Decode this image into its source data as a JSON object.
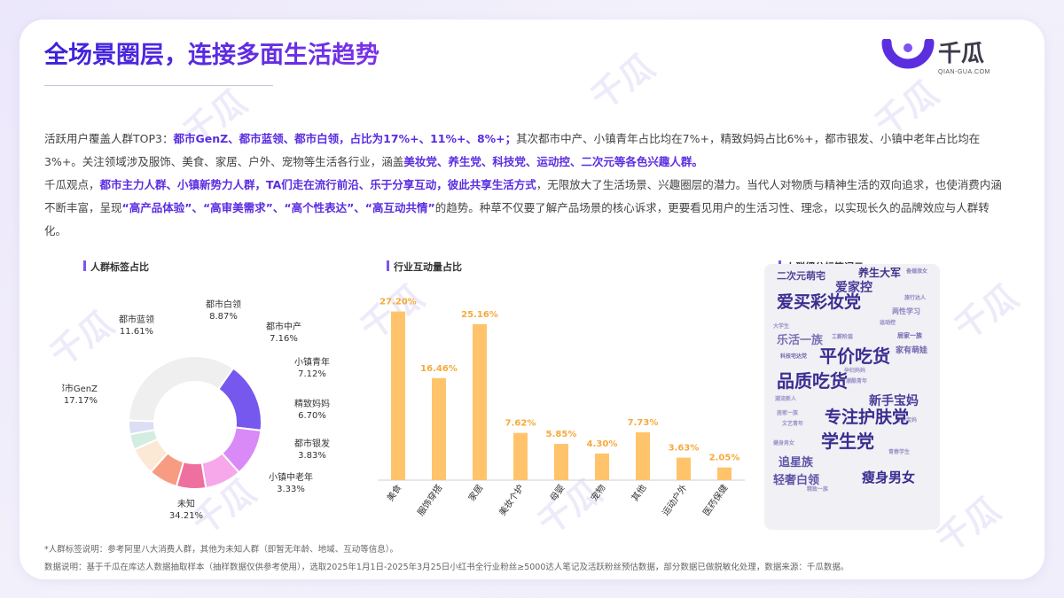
{
  "title": "全场景圈层，连接多面生活趋势",
  "logo": {
    "name": "千瓜",
    "sub": "QIAN-GUA.COM"
  },
  "watermark_text": "千瓜",
  "paragraph1": {
    "p1": "活跃用户覆盖人群TOP3：",
    "h1": "都市GenZ、都市蓝领、都市白领，占比为17%+、11%+、8%+；",
    "p2": "其次都市中产、小镇青年占比均在7%+，精致妈妈占比6%+，都市银发、小镇中老年占比均在3%+。关注领域涉及服饰、美食、家居、户外、宠物等生活各行业，涵盖",
    "h2": "美妆党、养生党、科技党、运动控、二次元等各色兴趣人群。"
  },
  "paragraph2": {
    "p1": "千瓜观点，",
    "h1": "都市主力人群、小镇新势力人群，TA们走在流行前沿、乐于分享互动，彼此共享生活方式",
    "p2": "，无限放大了生活场景、兴趣圈层的潜力。当代人对物质与精神生活的双向追求，也使消费内涵不断丰富，呈现",
    "h2": "“高产品体验”、“高审美需求”、“高个性表达”、“高互动共情”",
    "p3": "的趋势。种草不仅要了解产品场景的核心诉求，更要看见用户的生活习性、理念，以实现长久的品牌效应与人群转化。"
  },
  "sections": {
    "donut": "人群标签占比",
    "bar": "行业互动量占比",
    "cloud": "人群细分标签词云"
  },
  "chart_data": [
    {
      "type": "pie",
      "title": "人群标签占比",
      "categories": [
        "都市GenZ",
        "都市蓝领",
        "都市白领",
        "都市中产",
        "小镇青年",
        "精致妈妈",
        "都市银发",
        "小镇中老年",
        "未知"
      ],
      "values": [
        17.17,
        11.61,
        8.87,
        7.16,
        7.12,
        6.7,
        3.83,
        3.33,
        34.21
      ],
      "labels": [
        "17.17%",
        "11.61%",
        "8.87%",
        "7.16%",
        "7.12%",
        "6.70%",
        "3.83%",
        "3.33%",
        "34.21%"
      ],
      "colors": [
        "#7658ee",
        "#d98af6",
        "#f6a8ea",
        "#ef6f9e",
        "#f79c83",
        "#fde8d6",
        "#d3eee0",
        "#dcdef4",
        "#efefef"
      ]
    },
    {
      "type": "bar",
      "title": "行业互动量占比",
      "categories": [
        "美食",
        "服饰穿搭",
        "家居",
        "美妆个护",
        "母婴",
        "宠物",
        "其他",
        "运动户外",
        "医药保健"
      ],
      "values": [
        27.2,
        16.46,
        25.16,
        7.62,
        5.85,
        4.3,
        7.73,
        3.63,
        2.05
      ],
      "labels": [
        "27.20%",
        "16.46%",
        "25.16%",
        "7.62%",
        "5.85%",
        "4.30%",
        "7.73%",
        "3.63%",
        "2.05%"
      ],
      "ylim": [
        0,
        30
      ],
      "color": "#ffc46b"
    }
  ],
  "wordcloud": [
    {
      "text": "二次元萌宅",
      "color": "#524598",
      "size": 11
    },
    {
      "text": "养生大军",
      "color": "#3d3288",
      "size": 12
    },
    {
      "text": "备婚旅女",
      "color": "#8d84bf",
      "size": 6
    },
    {
      "text": "爱家控",
      "color": "#4a3d9a",
      "size": 14
    },
    {
      "text": "旅行达人",
      "color": "#8d84bf",
      "size": 6
    },
    {
      "text": "爱买彩妆党",
      "color": "#3a2e90",
      "size": 19
    },
    {
      "text": "两性学习",
      "color": "#8d84bf",
      "size": 8
    },
    {
      "text": "大学生",
      "color": "#9b93c8",
      "size": 6
    },
    {
      "text": "乐活一族",
      "color": "#7b72b8",
      "size": 13
    },
    {
      "text": "运动控",
      "color": "#8d84bf",
      "size": 6
    },
    {
      "text": "工薪阶层",
      "color": "#8d84bf",
      "size": 6
    },
    {
      "text": "居家一族",
      "color": "#6f66ad",
      "size": 7
    },
    {
      "text": "科技宅达党",
      "color": "#6f66ad",
      "size": 6
    },
    {
      "text": "家有萌娃",
      "color": "#6f66ad",
      "size": 9
    },
    {
      "text": "平价吃货",
      "color": "#3a2e90",
      "size": 20
    },
    {
      "text": "孕妇妈妈",
      "color": "#9b93c8",
      "size": 6
    },
    {
      "text": "潮酷青年",
      "color": "#9b93c8",
      "size": 6
    },
    {
      "text": "品质吃货",
      "color": "#3a2e90",
      "size": 20
    },
    {
      "text": "潮流新人",
      "color": "#9b93c8",
      "size": 6
    },
    {
      "text": "新手宝妈",
      "color": "#4a3d9a",
      "size": 14
    },
    {
      "text": "居家一族",
      "color": "#9b93c8",
      "size": 6
    },
    {
      "text": "备孕宝妈",
      "color": "#9b93c8",
      "size": 6
    },
    {
      "text": "文艺青年",
      "color": "#9b93c8",
      "size": 6
    },
    {
      "text": "专注护肤党",
      "color": "#3a2e90",
      "size": 19
    },
    {
      "text": "健身男女",
      "color": "#9b93c8",
      "size": 6
    },
    {
      "text": "学生党",
      "color": "#3a2e90",
      "size": 20
    },
    {
      "text": "青春学生",
      "color": "#9b93c8",
      "size": 6
    },
    {
      "text": "追星族",
      "color": "#5f56a8",
      "size": 13
    },
    {
      "text": "轻奢白领",
      "color": "#5f56a8",
      "size": 13
    },
    {
      "text": "瘦身男女",
      "color": "#3a2e90",
      "size": 15
    },
    {
      "text": "精致一族",
      "color": "#9b93c8",
      "size": 6
    }
  ],
  "footnote1": "*人群标签说明：参考阿里八大消费人群，其他为未知人群（即暂无年龄、地域、互动等信息）。",
  "footnote2": "数据说明：基于千瓜在库达人数据抽取样本（抽样数据仅供参考使用），选取2025年1月1日-2025年3月25日小红书全行业粉丝≥5000达人笔记及活跃粉丝预估数据，部分数据已做脱敏化处理，数据来源：千瓜数据。"
}
